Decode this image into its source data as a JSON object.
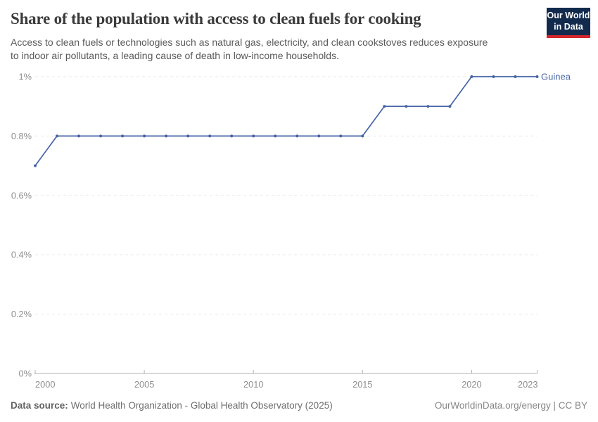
{
  "header": {
    "title": "Share of the population with access to clean fuels for cooking",
    "subtitle": "Access to clean fuels or technologies such as natural gas, electricity, and clean cookstoves reduces exposure\nto indoor air pollutants, a leading cause of death in low-income households."
  },
  "logo": {
    "line1": "Our World",
    "line2": "in Data",
    "bg_color": "#122B4D",
    "accent_color": "#D2262C"
  },
  "chart_data": {
    "type": "line",
    "title": "Share of the population with access to clean fuels for cooking",
    "xlabel": "",
    "ylabel": "",
    "xlim": [
      2000,
      2023
    ],
    "ylim": [
      0,
      1
    ],
    "grid": "horizontal-dashed",
    "legend": "end-of-line-label",
    "xticks": [
      2000,
      2005,
      2010,
      2015,
      2020,
      2023
    ],
    "yticks": [
      {
        "value": 0,
        "label": "0%"
      },
      {
        "value": 0.2,
        "label": "0.2%"
      },
      {
        "value": 0.4,
        "label": "0.4%"
      },
      {
        "value": 0.6,
        "label": "0.6%"
      },
      {
        "value": 0.8,
        "label": "0.8%"
      },
      {
        "value": 1,
        "label": "1%"
      }
    ],
    "series": [
      {
        "name": "Guinea",
        "color": "#4664A5",
        "x": [
          2000,
          2001,
          2002,
          2003,
          2004,
          2005,
          2006,
          2007,
          2008,
          2009,
          2010,
          2011,
          2012,
          2013,
          2014,
          2015,
          2016,
          2017,
          2018,
          2019,
          2020,
          2021,
          2022,
          2023
        ],
        "values": [
          0.7,
          0.8,
          0.8,
          0.8,
          0.8,
          0.8,
          0.8,
          0.8,
          0.8,
          0.8,
          0.8,
          0.8,
          0.8,
          0.8,
          0.8,
          0.8,
          0.9,
          0.9,
          0.9,
          0.9,
          1.0,
          1.0,
          1.0,
          1.0
        ]
      }
    ]
  },
  "footer": {
    "source_label": "Data source:",
    "source_text": "World Health Organization - Global Health Observatory (2025)",
    "credit": "OurWorldinData.org/energy | CC BY"
  }
}
